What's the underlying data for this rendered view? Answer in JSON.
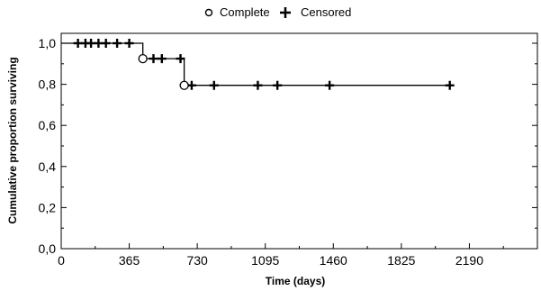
{
  "chart_data": {
    "type": "line",
    "title": "",
    "xlabel": "Time (days)",
    "ylabel": "Cumulative proportion surviving",
    "xlim": [
      0,
      2555
    ],
    "ylim": [
      0,
      1.05
    ],
    "x_ticks": [
      0,
      365,
      730,
      1095,
      1460,
      1825,
      2190
    ],
    "x_tick_labels": [
      "0",
      "365",
      "730",
      "1095",
      "1460",
      "1825",
      "2190"
    ],
    "y_ticks": [
      0.0,
      0.2,
      0.4,
      0.6,
      0.8,
      1.0
    ],
    "y_tick_labels": [
      "0,0",
      "0,2",
      "0,4",
      "0,6",
      "0,8",
      "1,0"
    ],
    "grid": false,
    "legend_position": "top-center",
    "legend": {
      "complete_label": "Complete",
      "censored_label": "Censored"
    },
    "survival_curve": [
      [
        0,
        1.0
      ],
      [
        438,
        1.0
      ],
      [
        438,
        0.925
      ],
      [
        660,
        0.925
      ],
      [
        660,
        0.795
      ],
      [
        2085,
        0.795
      ]
    ],
    "complete_events": [
      {
        "x": 438,
        "y": 0.925
      },
      {
        "x": 660,
        "y": 0.795
      }
    ],
    "censored_events": [
      {
        "x": 90,
        "y": 1.0
      },
      {
        "x": 130,
        "y": 1.0
      },
      {
        "x": 160,
        "y": 1.0
      },
      {
        "x": 200,
        "y": 1.0
      },
      {
        "x": 240,
        "y": 1.0
      },
      {
        "x": 300,
        "y": 1.0
      },
      {
        "x": 365,
        "y": 1.0
      },
      {
        "x": 495,
        "y": 0.925
      },
      {
        "x": 540,
        "y": 0.925
      },
      {
        "x": 640,
        "y": 0.925
      },
      {
        "x": 700,
        "y": 0.795
      },
      {
        "x": 820,
        "y": 0.795
      },
      {
        "x": 1055,
        "y": 0.795
      },
      {
        "x": 1160,
        "y": 0.795
      },
      {
        "x": 1440,
        "y": 0.795
      },
      {
        "x": 2085,
        "y": 0.795
      }
    ],
    "colors": {
      "line": "#000000",
      "background": "#ffffff"
    }
  }
}
